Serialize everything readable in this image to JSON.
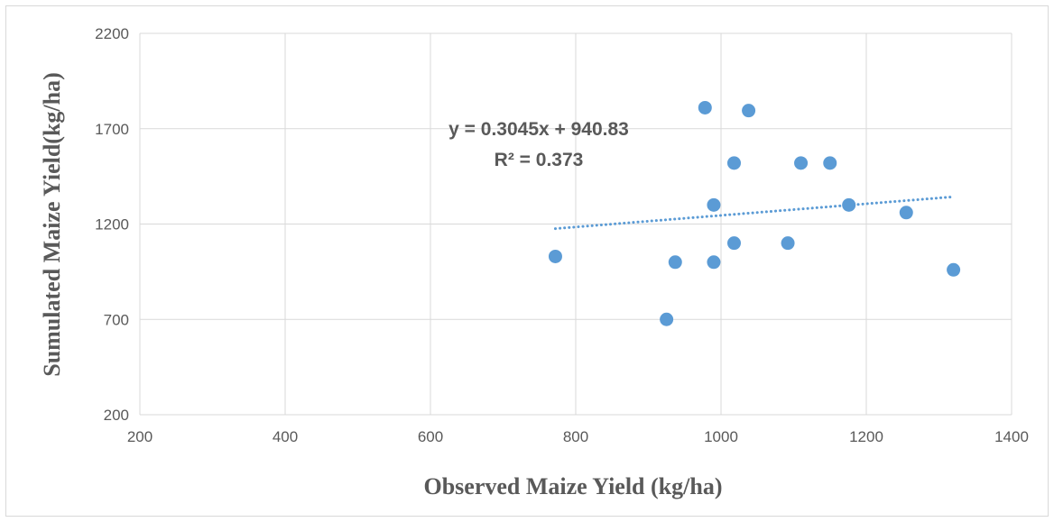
{
  "chart_data": {
    "type": "scatter",
    "xlabel": "Observed Maize Yield (kg/ha)",
    "ylabel": "Sumulated Maize Yield(kg/ha)",
    "xlim": [
      200,
      1400
    ],
    "ylim": [
      200,
      2200
    ],
    "x_ticks": [
      200,
      400,
      600,
      800,
      1000,
      1200,
      1400
    ],
    "y_ticks": [
      200,
      700,
      1200,
      1700,
      2200
    ],
    "grid": true,
    "marker_color": "#5b9bd5",
    "trendline": {
      "type": "linear",
      "style": "dotted",
      "slope": 0.3045,
      "intercept": 940.83,
      "x_range": [
        772,
        1320
      ],
      "equation_label": "y = 0.3045x + 940.83",
      "r2_label": "R² = 0.373"
    },
    "points": [
      {
        "x": 772,
        "y": 1030
      },
      {
        "x": 925,
        "y": 700
      },
      {
        "x": 937,
        "y": 1000
      },
      {
        "x": 978,
        "y": 1810
      },
      {
        "x": 990,
        "y": 1000
      },
      {
        "x": 990,
        "y": 1300
      },
      {
        "x": 1018,
        "y": 1100
      },
      {
        "x": 1018,
        "y": 1520
      },
      {
        "x": 1038,
        "y": 1795
      },
      {
        "x": 1092,
        "y": 1100
      },
      {
        "x": 1110,
        "y": 1520
      },
      {
        "x": 1150,
        "y": 1520
      },
      {
        "x": 1176,
        "y": 1300
      },
      {
        "x": 1255,
        "y": 1260
      },
      {
        "x": 1320,
        "y": 960
      }
    ]
  }
}
